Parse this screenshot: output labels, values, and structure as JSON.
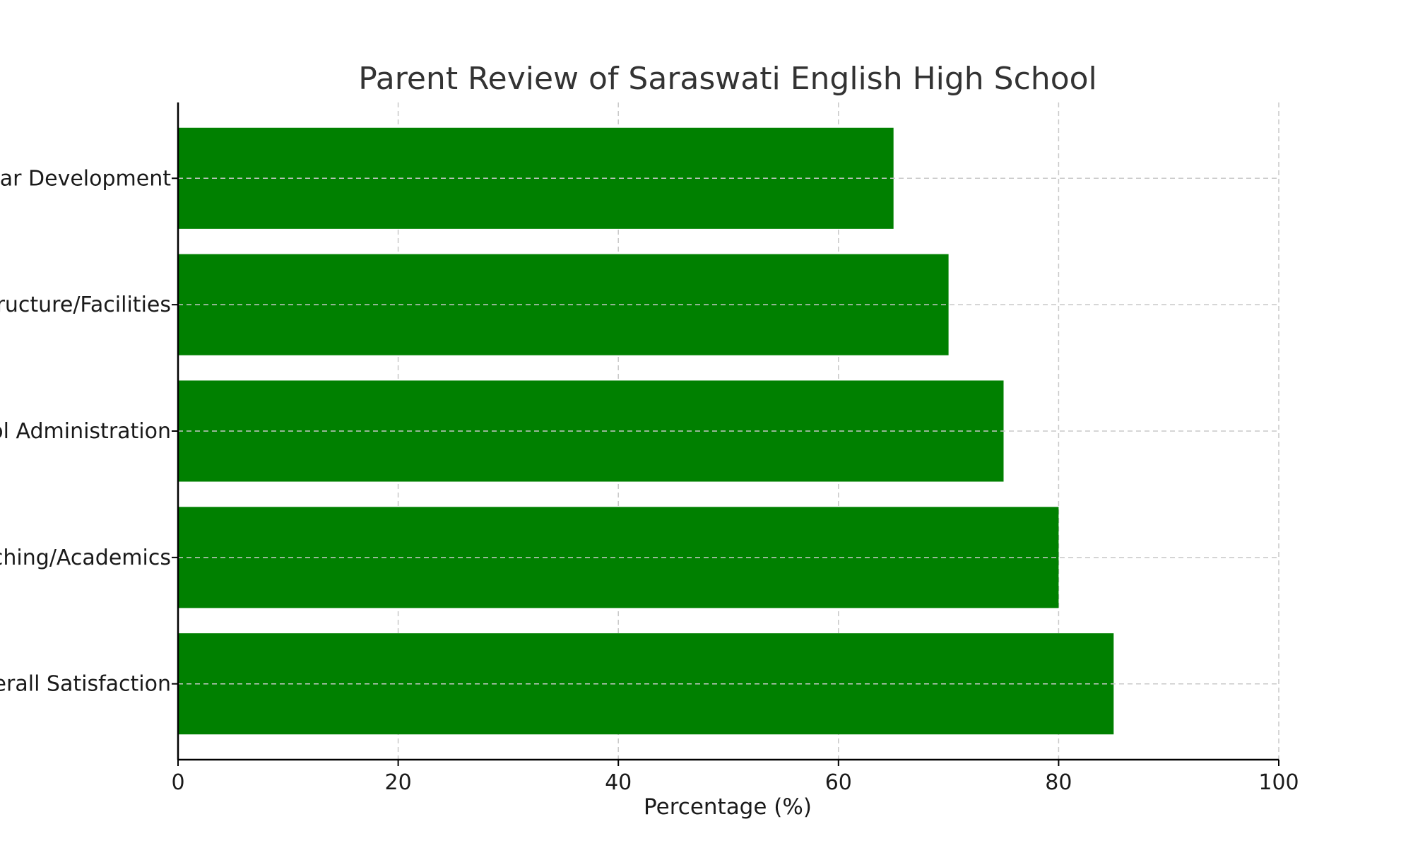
{
  "chart_data": {
    "type": "bar",
    "orientation": "horizontal",
    "title": "Parent Review of Saraswati English High School",
    "xlabel": "Percentage (%)",
    "ylabel": "",
    "categories": [
      "Overall Satisfaction",
      "Teaching/Academics",
      "School Administration",
      "Infrastructure/Facilities",
      "Extracurricular Development"
    ],
    "values": [
      85,
      80,
      75,
      70,
      65
    ],
    "xlim": [
      0,
      100
    ],
    "xticks": [
      0,
      20,
      40,
      60,
      80,
      100
    ],
    "grid": true,
    "bar_color": "#008000"
  }
}
